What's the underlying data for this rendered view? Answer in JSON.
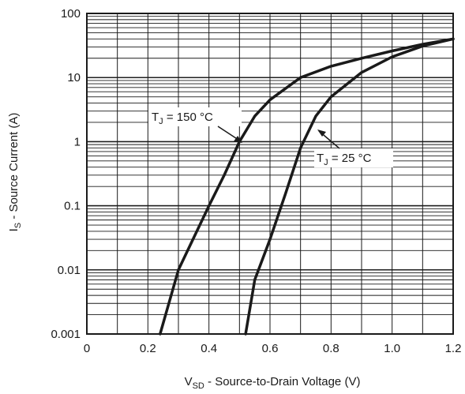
{
  "chart_data": {
    "type": "line",
    "x_scale": "linear",
    "y_scale": "log",
    "xlim": [
      0,
      1.2
    ],
    "ylim": [
      0.001,
      100
    ],
    "x_ticks": [
      "0",
      "0.2",
      "0.4",
      "0.6",
      "0.8",
      "1.0",
      "1.2"
    ],
    "y_ticks": [
      "0.001",
      "0.01",
      "0.1",
      "1",
      "10",
      "100"
    ],
    "xlabel": {
      "main": "V",
      "sub": "SD",
      "rest": " - Source-to-Drain Voltage (V)"
    },
    "ylabel": {
      "main": "I",
      "sub": "S",
      "rest": " - Source Current (A)"
    },
    "grid": true,
    "series": [
      {
        "annotation": {
          "main": "T",
          "sub": "J",
          "rest": " = 150 °C"
        },
        "x": [
          0.24,
          0.3,
          0.4,
          0.45,
          0.5,
          0.55,
          0.6,
          0.7,
          0.8,
          0.9,
          1.0,
          1.1,
          1.2
        ],
        "y": [
          0.001,
          0.01,
          0.1,
          0.3,
          1,
          2.5,
          4.5,
          10,
          15,
          20,
          26,
          33,
          40
        ]
      },
      {
        "annotation": {
          "main": "T",
          "sub": "J",
          "rest": " = 25 °C"
        },
        "x": [
          0.52,
          0.55,
          0.6,
          0.65,
          0.7,
          0.75,
          0.8,
          0.9,
          1.0,
          1.1,
          1.2
        ],
        "y": [
          0.001,
          0.007,
          0.03,
          0.15,
          0.8,
          2.5,
          5,
          12,
          21,
          31,
          40
        ]
      }
    ]
  }
}
